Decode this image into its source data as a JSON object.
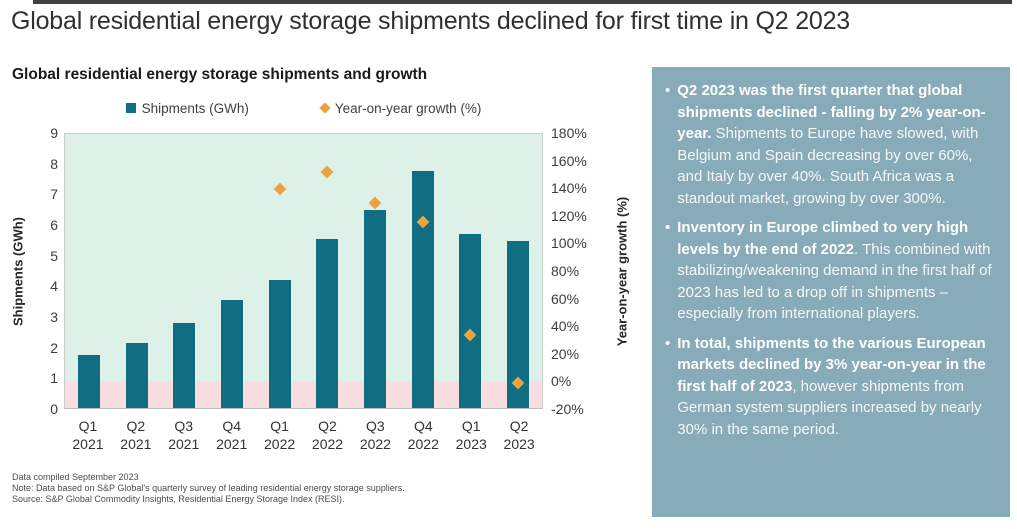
{
  "page": {
    "main_title": "Global residential energy storage shipments declined for first time in Q2 2023"
  },
  "chart": {
    "title": "Global residential energy storage shipments and growth",
    "legend": [
      {
        "name": "shipments-legend",
        "label": "Shipments (GWh)",
        "marker": "square",
        "color": "#116e82"
      },
      {
        "name": "growth-legend",
        "label": "Year-on-year growth (%)",
        "marker": "diamond",
        "color": "#e9a440"
      }
    ],
    "y_left_label": "Shipments (GWh)",
    "y_right_label": "Year-on-year growth (%)"
  },
  "chart_data": {
    "type": "bar",
    "title": "Global residential energy storage shipments and growth",
    "categories": [
      "Q1 2021",
      "Q2 2021",
      "Q3 2021",
      "Q4 2021",
      "Q1 2022",
      "Q2 2022",
      "Q3 2022",
      "Q4 2022",
      "Q1 2023",
      "Q2 2023"
    ],
    "series": [
      {
        "name": "Shipments (GWh)",
        "type": "bar",
        "axis": "left",
        "color": "#116e82",
        "values": [
          1.75,
          2.15,
          2.8,
          3.55,
          4.2,
          5.55,
          6.5,
          7.8,
          5.7,
          5.5
        ]
      },
      {
        "name": "Year-on-year growth (%)",
        "type": "scatter",
        "axis": "right",
        "color": "#e9a440",
        "values": [
          null,
          null,
          null,
          null,
          140,
          152,
          130,
          116,
          33,
          -2
        ]
      }
    ],
    "xlabel": "",
    "ylabel_left": "Shipments (GWh)",
    "ylabel_right": "Year-on-year growth (%)",
    "ylim_left": [
      0,
      9
    ],
    "ylim_right": [
      -20,
      180
    ],
    "y_left_ticks": [
      9,
      8,
      7,
      6,
      5,
      4,
      3,
      2,
      1,
      0
    ],
    "y_right_ticks": [
      "180%",
      "160%",
      "140%",
      "120%",
      "100%",
      "80%",
      "60%",
      "40%",
      "20%",
      "0%",
      "-20%"
    ],
    "grid": false,
    "legend_position": "top",
    "plot_bg_positive_color": "#def1e8",
    "plot_bg_negative_color": "#fbdce0"
  },
  "footnotes": [
    "Data compiled September 2023",
    "Note: Data based on S&P Global's quarterly survey of leading residential energy storage suppliers.",
    "Source: S&P Global Commodity Insights, Residential Energy Storage Index (RESI)."
  ],
  "sidebar": {
    "background_color": "#87abb9",
    "bullets": [
      {
        "lead": "Q2 2023 was the first quarter that global shipments declined - falling by 2% year-on-year.",
        "rest": " Shipments to Europe have slowed, with Belgium and Spain decreasing by over 60%, and Italy by over 40%. South Africa was a standout market, growing by over 300%."
      },
      {
        "lead": "Inventory in Europe climbed to very high levels by the end of 2022",
        "rest": ". This combined with stabilizing/weakening demand in the first half of 2023 has led to a drop off in shipments – especially from international players."
      },
      {
        "lead": "In total, shipments to the various European markets declined by 3% year-on-year in the first half of 2023",
        "rest": ", however shipments from German system suppliers increased by nearly 30% in the same period."
      }
    ]
  }
}
